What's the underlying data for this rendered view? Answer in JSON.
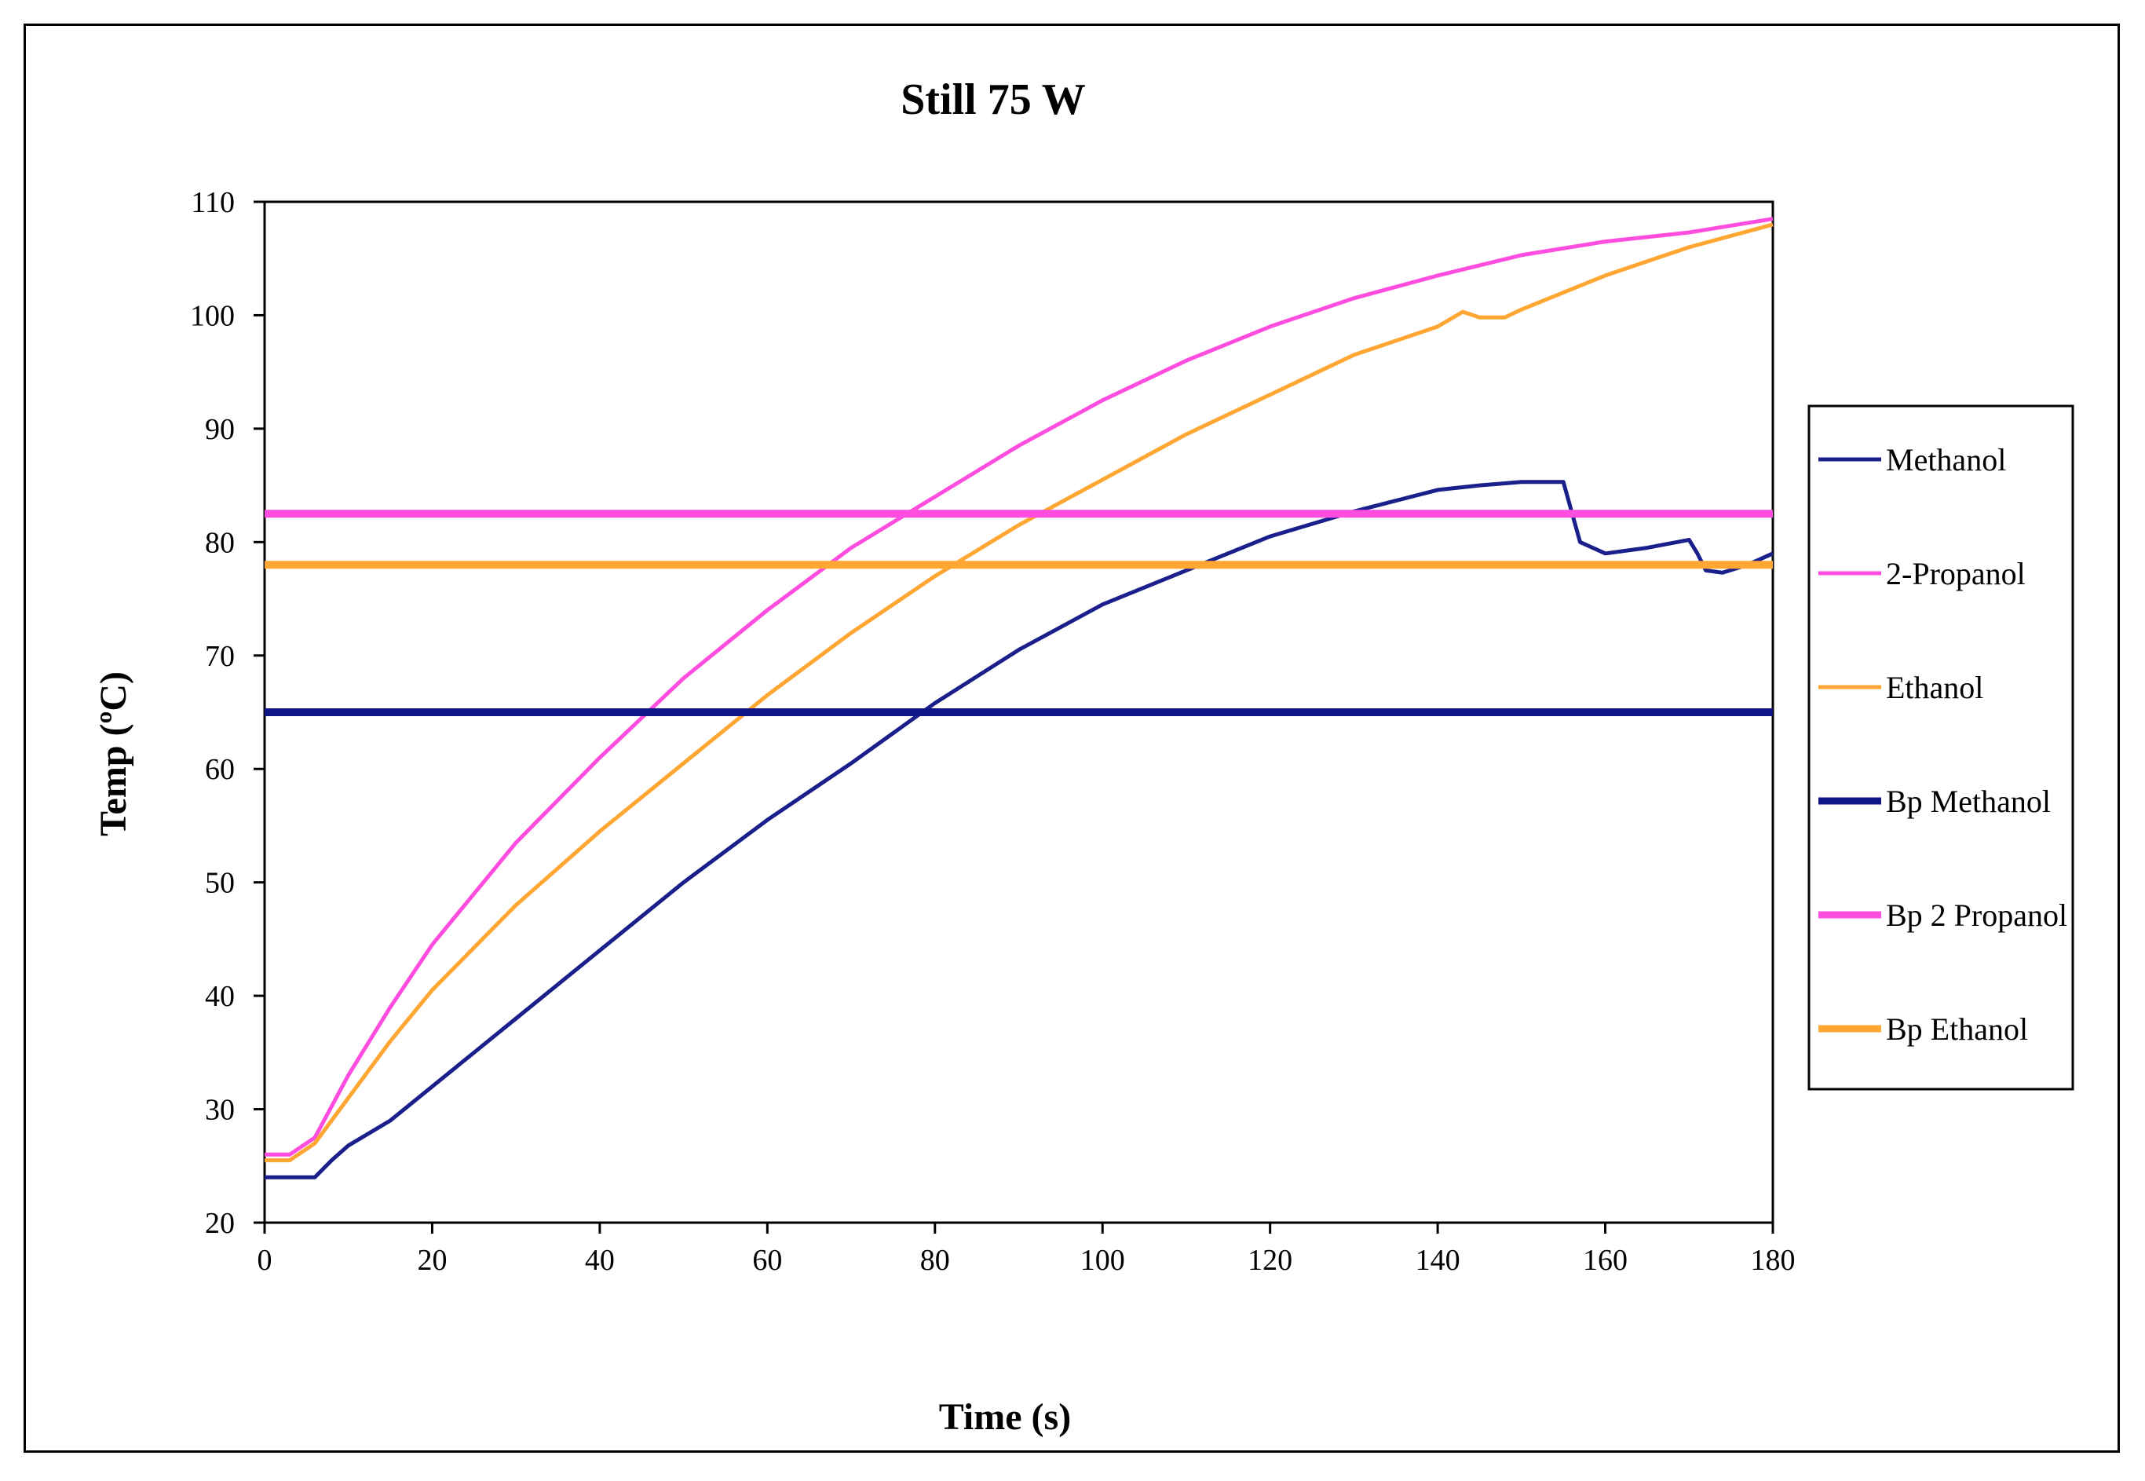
{
  "chart_data": {
    "type": "line",
    "title": "Still 75 W",
    "xlabel": "Time (s)",
    "ylabel": "Temp (ºC)",
    "xlim": [
      0,
      180
    ],
    "ylim": [
      20,
      110
    ],
    "xticks": [
      0,
      20,
      40,
      60,
      80,
      100,
      120,
      140,
      160,
      180
    ],
    "yticks": [
      20,
      30,
      40,
      50,
      60,
      70,
      80,
      90,
      100,
      110
    ],
    "grid": false,
    "legend_position": "right",
    "series": [
      {
        "name": "Methanol",
        "color": "#1a1f8c",
        "style": "thin",
        "points": [
          [
            0,
            24
          ],
          [
            6,
            24
          ],
          [
            8,
            25.5
          ],
          [
            10,
            26.8
          ],
          [
            15,
            29
          ],
          [
            20,
            32
          ],
          [
            30,
            38
          ],
          [
            40,
            44
          ],
          [
            50,
            50
          ],
          [
            60,
            55.5
          ],
          [
            70,
            60.5
          ],
          [
            80,
            65.8
          ],
          [
            90,
            70.5
          ],
          [
            100,
            74.5
          ],
          [
            110,
            77.5
          ],
          [
            120,
            80.5
          ],
          [
            130,
            82.7
          ],
          [
            140,
            84.6
          ],
          [
            145,
            85
          ],
          [
            150,
            85.3
          ],
          [
            155,
            85.3
          ],
          [
            157,
            80
          ],
          [
            160,
            79
          ],
          [
            165,
            79.5
          ],
          [
            170,
            80.2
          ],
          [
            171,
            79
          ],
          [
            172,
            77.5
          ],
          [
            174,
            77.3
          ],
          [
            177,
            78
          ],
          [
            180,
            79
          ]
        ]
      },
      {
        "name": "2-Propanol",
        "color": "#ff4de0",
        "style": "thin",
        "points": [
          [
            0,
            26
          ],
          [
            3,
            26
          ],
          [
            6,
            27.5
          ],
          [
            10,
            33
          ],
          [
            15,
            39
          ],
          [
            20,
            44.5
          ],
          [
            30,
            53.5
          ],
          [
            40,
            61
          ],
          [
            50,
            68
          ],
          [
            60,
            74
          ],
          [
            70,
            79.5
          ],
          [
            80,
            84
          ],
          [
            90,
            88.5
          ],
          [
            100,
            92.5
          ],
          [
            110,
            96
          ],
          [
            120,
            99
          ],
          [
            130,
            101.5
          ],
          [
            140,
            103.5
          ],
          [
            150,
            105.3
          ],
          [
            160,
            106.5
          ],
          [
            170,
            107.3
          ],
          [
            180,
            108.5
          ]
        ]
      },
      {
        "name": "Ethanol",
        "color": "#ffa633",
        "style": "thin",
        "points": [
          [
            0,
            25.5
          ],
          [
            3,
            25.5
          ],
          [
            6,
            27
          ],
          [
            10,
            31
          ],
          [
            15,
            36
          ],
          [
            20,
            40.5
          ],
          [
            30,
            48
          ],
          [
            40,
            54.5
          ],
          [
            50,
            60.5
          ],
          [
            60,
            66.5
          ],
          [
            70,
            72
          ],
          [
            80,
            77
          ],
          [
            90,
            81.5
          ],
          [
            100,
            85.5
          ],
          [
            110,
            89.5
          ],
          [
            120,
            93
          ],
          [
            130,
            96.5
          ],
          [
            140,
            99
          ],
          [
            143,
            100.3
          ],
          [
            145,
            99.8
          ],
          [
            148,
            99.8
          ],
          [
            150,
            100.5
          ],
          [
            160,
            103.5
          ],
          [
            170,
            106
          ],
          [
            180,
            108
          ]
        ]
      },
      {
        "name": "Bp Methanol",
        "color": "#101585",
        "style": "thick",
        "value": 65
      },
      {
        "name": "Bp 2 Propanol",
        "color": "#ff4de0",
        "style": "thick",
        "value": 82.5
      },
      {
        "name": "Bp Ethanol",
        "color": "#ffa633",
        "style": "thick",
        "value": 78
      }
    ]
  }
}
